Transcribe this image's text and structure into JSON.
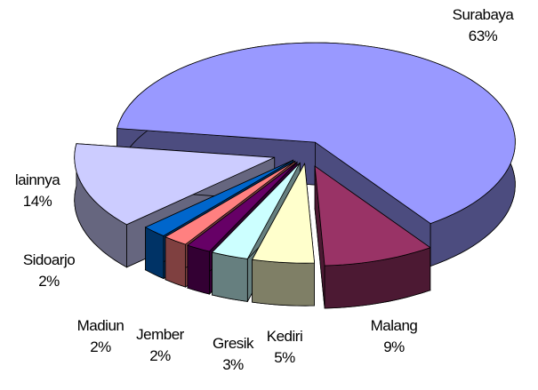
{
  "chart_data": {
    "type": "pie3d",
    "categories": [
      "Surabaya",
      "Malang",
      "Kediri",
      "Gresik",
      "Jember",
      "Madiun",
      "Sidoarjo",
      "lainnya"
    ],
    "values": [
      63,
      9,
      5,
      3,
      2,
      2,
      2,
      14
    ],
    "value_labels": [
      "63%",
      "9%",
      "5%",
      "3%",
      "2%",
      "2%",
      "2%",
      "14%"
    ],
    "colors": [
      "#9999ff",
      "#993366",
      "#ffffcc",
      "#ccffff",
      "#660066",
      "#ff8080",
      "#0066cc",
      "#ccccff"
    ]
  }
}
